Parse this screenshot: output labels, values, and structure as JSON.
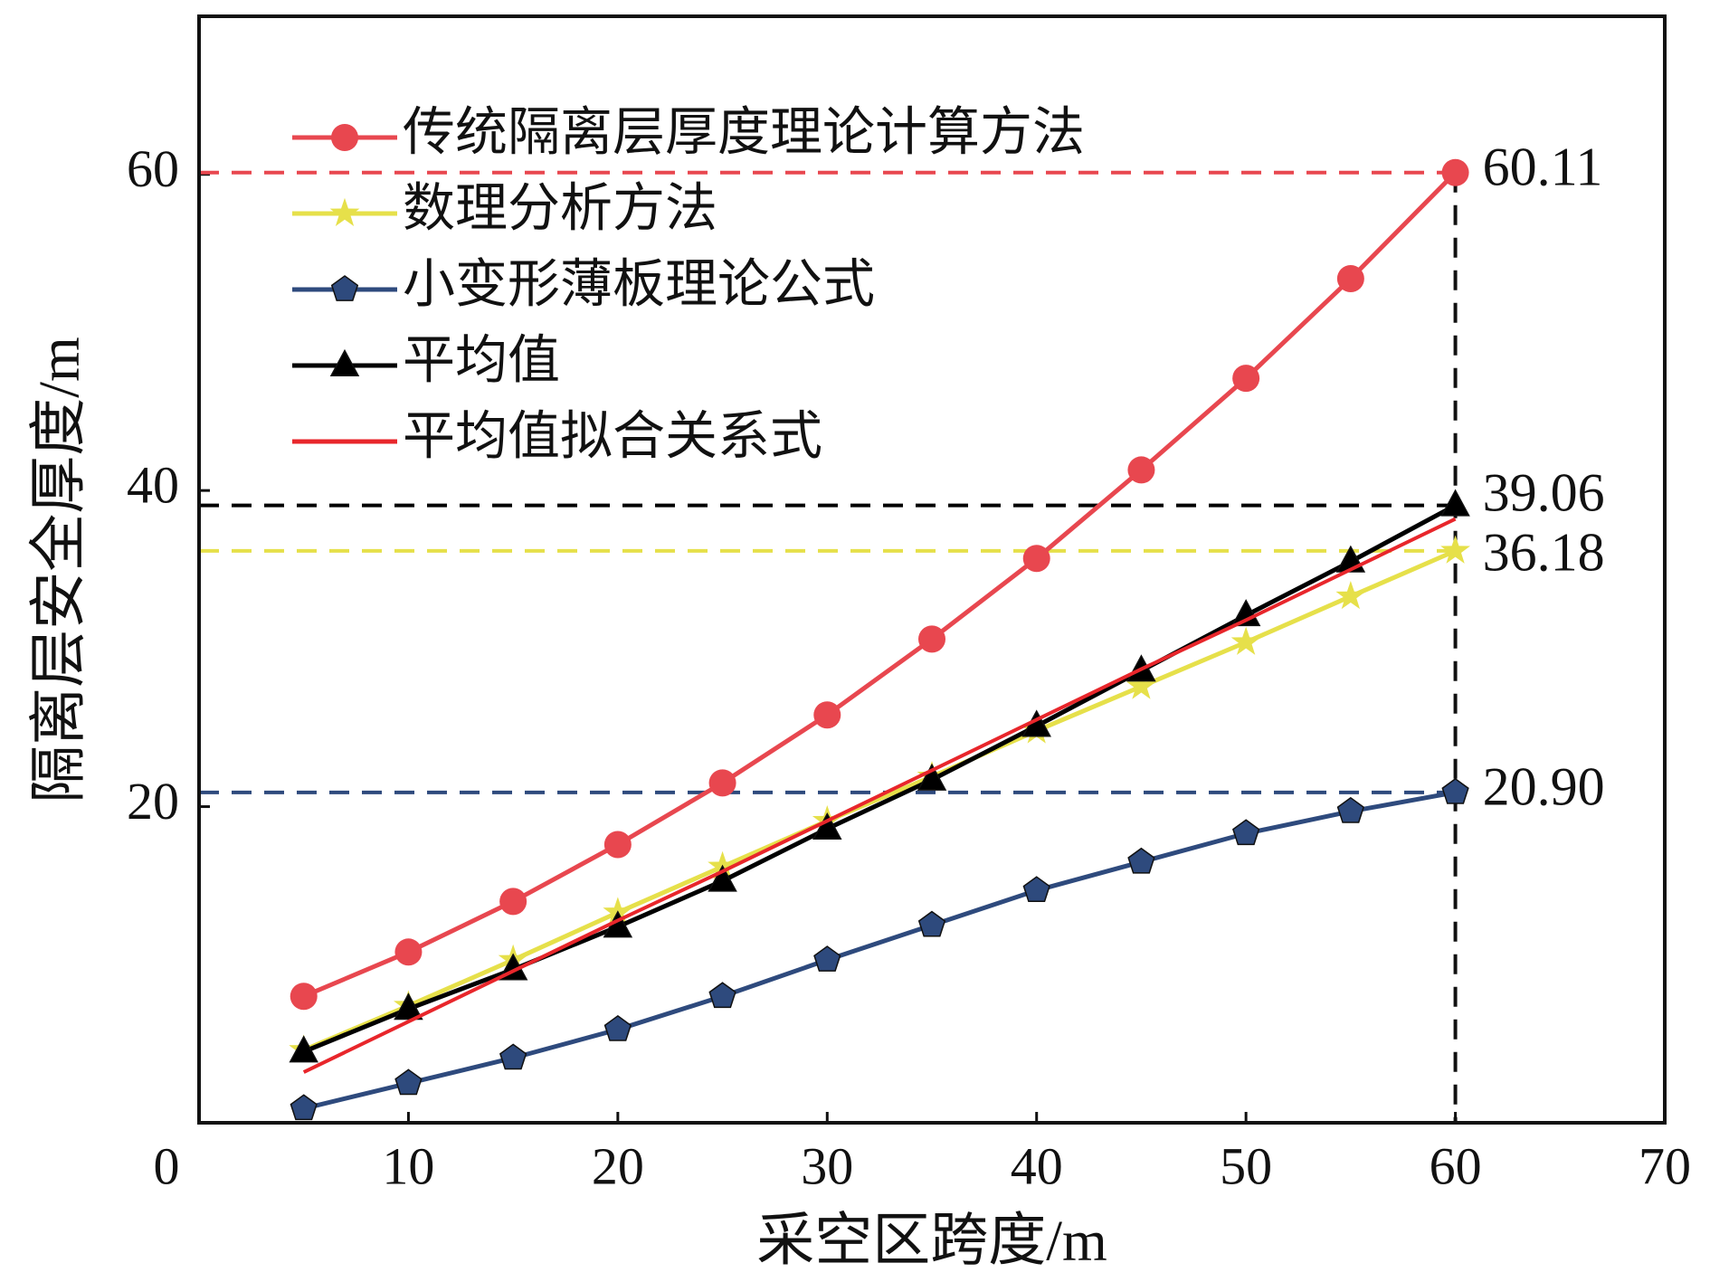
{
  "chart_data": {
    "type": "line",
    "x_label": "采空区跨度/m",
    "y_label": "隔离层安全厚度/m",
    "x": [
      5,
      10,
      15,
      20,
      25,
      30,
      35,
      40,
      45,
      50,
      55,
      60
    ],
    "xlim": [
      0,
      70
    ],
    "xticks": [
      0,
      10,
      20,
      30,
      40,
      50,
      60,
      70
    ],
    "ylim": [
      0,
      70
    ],
    "yticks": [
      20,
      40,
      60
    ],
    "legend": "upper-left",
    "series": [
      {
        "name": "传统隔离层厚度理论计算方法",
        "color": "#e8474f",
        "marker": "circle",
        "dashed_guide": true,
        "values": [
          8.0,
          10.8,
          14.0,
          17.6,
          21.5,
          25.8,
          30.6,
          35.7,
          41.3,
          47.1,
          53.4,
          60.11
        ],
        "value_labels": [
          null,
          null,
          null,
          null,
          null,
          null,
          null,
          null,
          null,
          null,
          null,
          "60.11"
        ]
      },
      {
        "name": "数理分析方法",
        "color": "#e6e04a",
        "marker": "star",
        "dashed_guide": true,
        "values": [
          4.6,
          7.4,
          10.3,
          13.3,
          16.2,
          19.1,
          21.9,
          24.8,
          27.6,
          30.4,
          33.3,
          36.18
        ],
        "value_labels": [
          null,
          null,
          null,
          null,
          null,
          null,
          null,
          null,
          null,
          null,
          null,
          "36.18"
        ]
      },
      {
        "name": "小变形薄板理论公式",
        "color": "#2e4a7d",
        "marker": "pentagon",
        "dashed_guide": true,
        "values": [
          0.9,
          2.5,
          4.1,
          5.9,
          8.0,
          10.3,
          12.5,
          14.7,
          16.5,
          18.3,
          19.7,
          20.9
        ],
        "value_labels": [
          null,
          null,
          null,
          null,
          null,
          null,
          null,
          null,
          null,
          null,
          null,
          "20.90"
        ]
      },
      {
        "name": "平均值",
        "color": "#000000",
        "marker": "triangle",
        "dashed_guide": true,
        "values": [
          4.5,
          7.2,
          9.7,
          12.4,
          15.3,
          18.6,
          21.7,
          25.1,
          28.6,
          32.1,
          35.5,
          39.06
        ],
        "value_labels": [
          null,
          null,
          null,
          null,
          null,
          null,
          null,
          null,
          null,
          null,
          null,
          "39.06"
        ]
      },
      {
        "name": "平均值拟合关系式",
        "color": "#e8262b",
        "marker": "none",
        "dashed_guide": false,
        "values": [
          3.2,
          6.4,
          9.6,
          12.8,
          15.9,
          19.1,
          22.3,
          25.5,
          28.7,
          31.8,
          35.0,
          38.2
        ]
      }
    ]
  }
}
